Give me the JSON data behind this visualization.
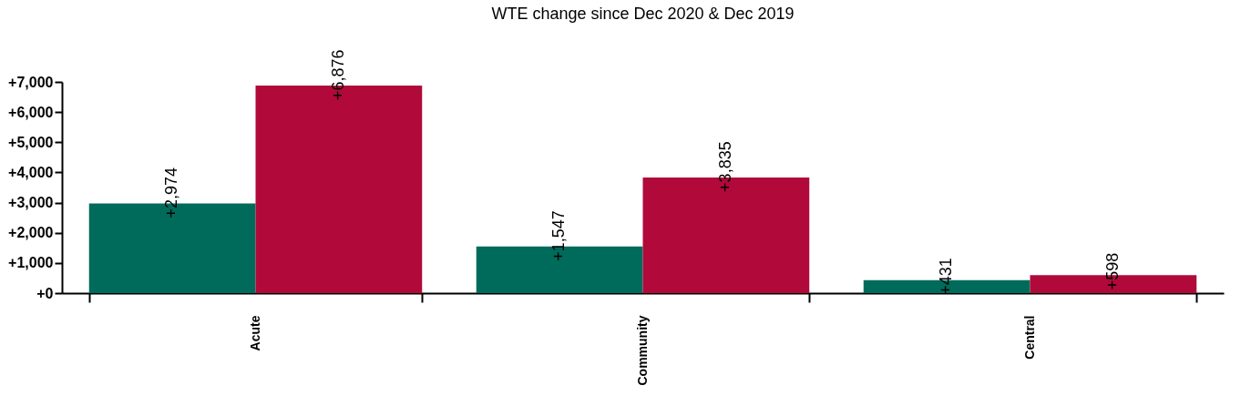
{
  "chart_data": {
    "type": "bar",
    "title": "WTE change since Dec 2020 & Dec 2019",
    "categories": [
      "Acute",
      "Community",
      "Central"
    ],
    "series": [
      {
        "color": "#006b5a",
        "values": [
          2974,
          1547,
          431
        ],
        "value_labels": [
          "+2,974",
          "+1,547",
          "+431"
        ]
      },
      {
        "color": "#b0093a",
        "values": [
          6876,
          3835,
          598
        ],
        "value_labels": [
          "+6,876",
          "+3,835",
          "+598"
        ]
      }
    ],
    "ylim": [
      0,
      7000
    ],
    "yticks": [
      {
        "value": 0,
        "label": "+0"
      },
      {
        "value": 1000,
        "label": "+1,000"
      },
      {
        "value": 2000,
        "label": "+2,000"
      },
      {
        "value": 3000,
        "label": "+3,000"
      },
      {
        "value": 4000,
        "label": "+4,000"
      },
      {
        "value": 5000,
        "label": "+5,000"
      },
      {
        "value": 6000,
        "label": "+6,000"
      },
      {
        "value": 7000,
        "label": "+7,000"
      }
    ],
    "grid": false
  }
}
